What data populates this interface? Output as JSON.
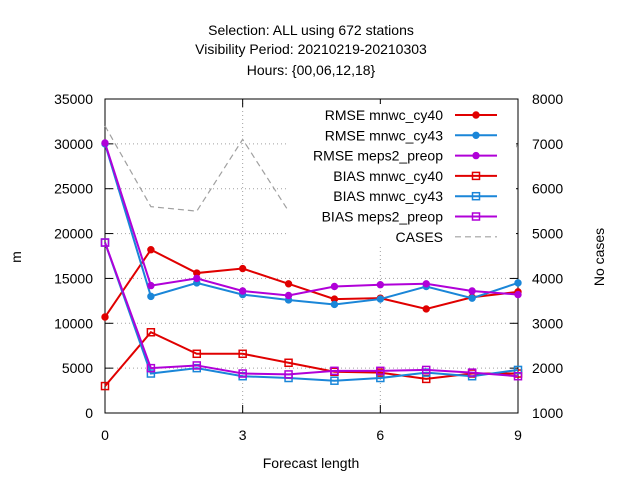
{
  "chart_data": {
    "type": "line",
    "title_lines": [
      "Selection: ALL using   672 stations",
      "Visibility   Period: 20210219-20210303",
      "Hours: {00,06,12,18}"
    ],
    "xlabel": "Forecast length",
    "ylabel": "m",
    "y2label": "No cases",
    "x": [
      0,
      1,
      2,
      3,
      4,
      5,
      6,
      7,
      8,
      9
    ],
    "xlim": [
      0,
      9
    ],
    "xticks": [
      0,
      3,
      6,
      9
    ],
    "ylim": [
      0,
      35000
    ],
    "yticks": [
      0,
      5000,
      10000,
      15000,
      20000,
      25000,
      30000,
      35000
    ],
    "y2lim": [
      1000,
      8000
    ],
    "y2ticks": [
      1000,
      2000,
      3000,
      4000,
      5000,
      6000,
      7000,
      8000
    ],
    "grid": true,
    "legend_position": "top-right",
    "series": [
      {
        "name": "RMSE mnwc_cy40",
        "axis": "y1",
        "color": "#e00000",
        "marker": "filled-circle",
        "dash": false,
        "values": [
          10700,
          18200,
          15600,
          16100,
          14400,
          12700,
          12800,
          11600,
          12900,
          13500
        ]
      },
      {
        "name": "RMSE mnwc_cy43",
        "axis": "y1",
        "color": "#1a86d8",
        "marker": "filled-circle",
        "dash": false,
        "values": [
          30000,
          13000,
          14500,
          13200,
          12600,
          12100,
          12700,
          14100,
          12800,
          14500
        ]
      },
      {
        "name": "RMSE meps2_preop",
        "axis": "y1",
        "color": "#b000d8",
        "marker": "filled-circle",
        "dash": false,
        "values": [
          30100,
          14200,
          15000,
          13600,
          13100,
          14100,
          14300,
          14400,
          13600,
          13200
        ]
      },
      {
        "name": "BIAS mnwc_cy40",
        "axis": "y1",
        "color": "#e00000",
        "marker": "open-square",
        "dash": false,
        "values": [
          3000,
          9000,
          6600,
          6600,
          5600,
          4600,
          4500,
          3800,
          4400,
          4400
        ]
      },
      {
        "name": "BIAS mnwc_cy43",
        "axis": "y1",
        "color": "#1a86d8",
        "marker": "open-square",
        "dash": false,
        "values": [
          19000,
          4400,
          5000,
          4100,
          3900,
          3600,
          3900,
          4500,
          4100,
          4800
        ]
      },
      {
        "name": "BIAS meps2_preop",
        "axis": "y1",
        "color": "#b000d8",
        "marker": "open-square",
        "dash": false,
        "values": [
          19000,
          5000,
          5300,
          4400,
          4300,
          4700,
          4700,
          4800,
          4500,
          4100
        ]
      },
      {
        "name": "CASES",
        "axis": "y2",
        "color": "#a0a0a0",
        "marker": "none",
        "dash": true,
        "values": [
          7400,
          5600,
          5500,
          7100,
          5500,
          5500,
          5600,
          5300,
          5500,
          7000
        ]
      }
    ]
  }
}
